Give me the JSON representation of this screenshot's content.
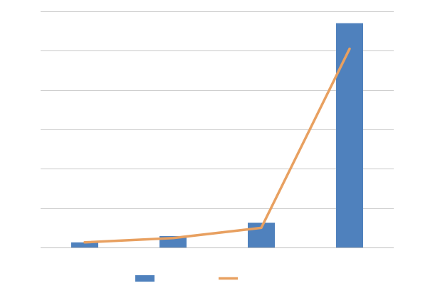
{
  "chart_data": {
    "type": "bar",
    "categories": [
      "",
      "",
      "",
      ""
    ],
    "title": "",
    "xlabel": "",
    "ylabel": "",
    "ylim": [
      0,
      6
    ],
    "grid": true,
    "legend": "bottom",
    "series": [
      {
        "type": "bar",
        "values": [
          0.13,
          0.29,
          0.63,
          5.7
        ],
        "color": "#4f81bd"
      },
      {
        "type": "line",
        "values": [
          0.13,
          0.24,
          0.5,
          5.05
        ],
        "color": "#e8a060"
      }
    ]
  }
}
